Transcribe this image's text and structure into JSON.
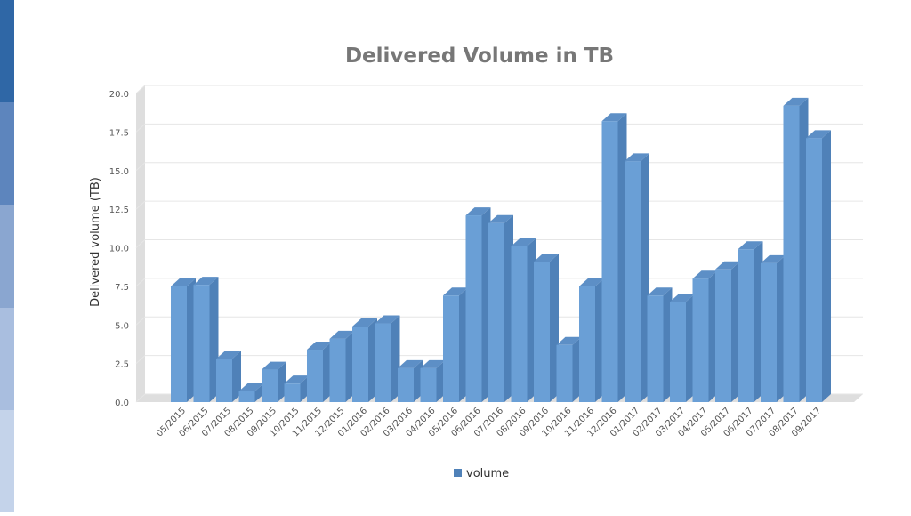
{
  "theme": {
    "strip_colors": [
      "#2f67a6",
      "#5d85bd",
      "#8aa6d0",
      "#a9bedf",
      "#c4d3ea"
    ],
    "bar_face": "#6a9fd6",
    "bar_side": "#4f81b8",
    "bar_top": "#5d8fc6",
    "grid": "#e6e6e6",
    "wall": "#dedede",
    "title_color": "#777777"
  },
  "chart_data": {
    "type": "bar",
    "title": "Delivered Volume in TB",
    "xlabel": "",
    "ylabel": "Delivered volume (TB)",
    "ylim": [
      0,
      20
    ],
    "yticks": [
      "0.0",
      "2.5",
      "5.0",
      "7.5",
      "10.0",
      "12.5",
      "15.0",
      "17.5",
      "20.0"
    ],
    "ytick_values": [
      0,
      2.5,
      5,
      7.5,
      10,
      12.5,
      15,
      17.5,
      20
    ],
    "grid": true,
    "legend_position": "bottom",
    "categories": [
      "05/2015",
      "06/2015",
      "07/2015",
      "08/2015",
      "09/2015",
      "10/2015",
      "11/2015",
      "12/2015",
      "01/2016",
      "02/2016",
      "03/2016",
      "04/2016",
      "05/2016",
      "06/2016",
      "07/2016",
      "08/2016",
      "09/2016",
      "10/2016",
      "11/2016",
      "12/2016",
      "01/2017",
      "02/2017",
      "03/2017",
      "04/2017",
      "05/2017",
      "06/2017",
      "07/2017",
      "08/2017",
      "09/2017"
    ],
    "series": [
      {
        "name": "volume",
        "values": [
          7.5,
          7.6,
          2.8,
          0.7,
          2.1,
          1.2,
          3.4,
          4.1,
          4.9,
          5.1,
          2.2,
          2.2,
          6.9,
          12.1,
          11.6,
          10.1,
          9.1,
          3.7,
          7.5,
          18.2,
          15.6,
          6.9,
          6.5,
          8.0,
          8.6,
          9.9,
          9.0,
          19.2,
          17.1
        ]
      }
    ]
  }
}
